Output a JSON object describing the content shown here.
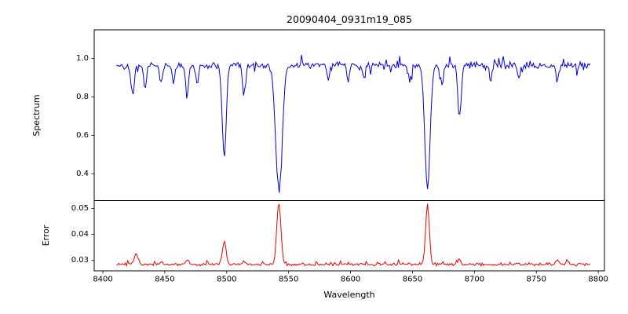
{
  "figure": {
    "background": "#ffffff"
  },
  "chart_data": {
    "type": "line",
    "title": "20090404_0931m19_085",
    "xlabel": "Wavelength",
    "grid": false,
    "legend": null,
    "xlim": [
      8393,
      8805
    ],
    "x_ticks": [
      8400,
      8450,
      8500,
      8550,
      8600,
      8650,
      8700,
      8750,
      8800
    ],
    "x_range": [
      8411,
      8794
    ],
    "x_step": 0.9,
    "noise_seed": 42,
    "panels": [
      {
        "name": "spectrum",
        "ylabel": "Spectrum",
        "color": "#0000dd",
        "ylim": [
          0.26,
          1.15
        ],
        "y_ticks": [
          0.4,
          0.6,
          0.8,
          1.0
        ],
        "y_tick_labels": [
          "0.4",
          "0.6",
          "0.8",
          "1.0"
        ],
        "continuum": 0.965,
        "noise_amp": 0.02,
        "absorption_lines": [
          {
            "center": 8424,
            "depth": 0.15,
            "sigma": 1.4
          },
          {
            "center": 8434,
            "depth": 0.12,
            "sigma": 1.2
          },
          {
            "center": 8447,
            "depth": 0.1,
            "sigma": 1.1
          },
          {
            "center": 8457,
            "depth": 0.09,
            "sigma": 1.0
          },
          {
            "center": 8468,
            "depth": 0.16,
            "sigma": 1.3
          },
          {
            "center": 8476,
            "depth": 0.1,
            "sigma": 1.0
          },
          {
            "center": 8498.0,
            "depth": 0.49,
            "sigma": 1.6
          },
          {
            "center": 8514,
            "depth": 0.15,
            "sigma": 1.2
          },
          {
            "center": 8542.1,
            "depth": 0.66,
            "sigma": 2.6
          },
          {
            "center": 8582,
            "depth": 0.07,
            "sigma": 1.0
          },
          {
            "center": 8598,
            "depth": 0.08,
            "sigma": 1.0
          },
          {
            "center": 8611,
            "depth": 0.07,
            "sigma": 1.0
          },
          {
            "center": 8648,
            "depth": 0.08,
            "sigma": 1.0
          },
          {
            "center": 8662.1,
            "depth": 0.65,
            "sigma": 2.1
          },
          {
            "center": 8674,
            "depth": 0.1,
            "sigma": 1.1
          },
          {
            "center": 8688,
            "depth": 0.27,
            "sigma": 1.4
          },
          {
            "center": 8713,
            "depth": 0.08,
            "sigma": 1.0
          },
          {
            "center": 8736,
            "depth": 0.07,
            "sigma": 1.0
          },
          {
            "center": 8767,
            "depth": 0.09,
            "sigma": 1.1
          }
        ]
      },
      {
        "name": "error",
        "ylabel": "Error",
        "color": "#ee0000",
        "ylim": [
          0.026,
          0.053
        ],
        "y_ticks": [
          0.03,
          0.04,
          0.05
        ],
        "y_tick_labels": [
          "0.03",
          "0.04",
          "0.05"
        ],
        "baseline": 0.0285,
        "noise_amp": 0.0007,
        "peaks": [
          {
            "center": 8427,
            "height": 0.004,
            "sigma": 1.6
          },
          {
            "center": 8447,
            "height": 0.0012,
            "sigma": 1.2
          },
          {
            "center": 8468,
            "height": 0.0015,
            "sigma": 1.2
          },
          {
            "center": 8498.0,
            "height": 0.009,
            "sigma": 1.5
          },
          {
            "center": 8514,
            "height": 0.0012,
            "sigma": 1.1
          },
          {
            "center": 8542.1,
            "height": 0.0235,
            "sigma": 1.7
          },
          {
            "center": 8662.1,
            "height": 0.023,
            "sigma": 1.5
          },
          {
            "center": 8688,
            "height": 0.002,
            "sigma": 1.2
          },
          {
            "center": 8767,
            "height": 0.0018,
            "sigma": 1.2
          },
          {
            "center": 8775,
            "height": 0.0015,
            "sigma": 1.0
          }
        ]
      }
    ]
  }
}
